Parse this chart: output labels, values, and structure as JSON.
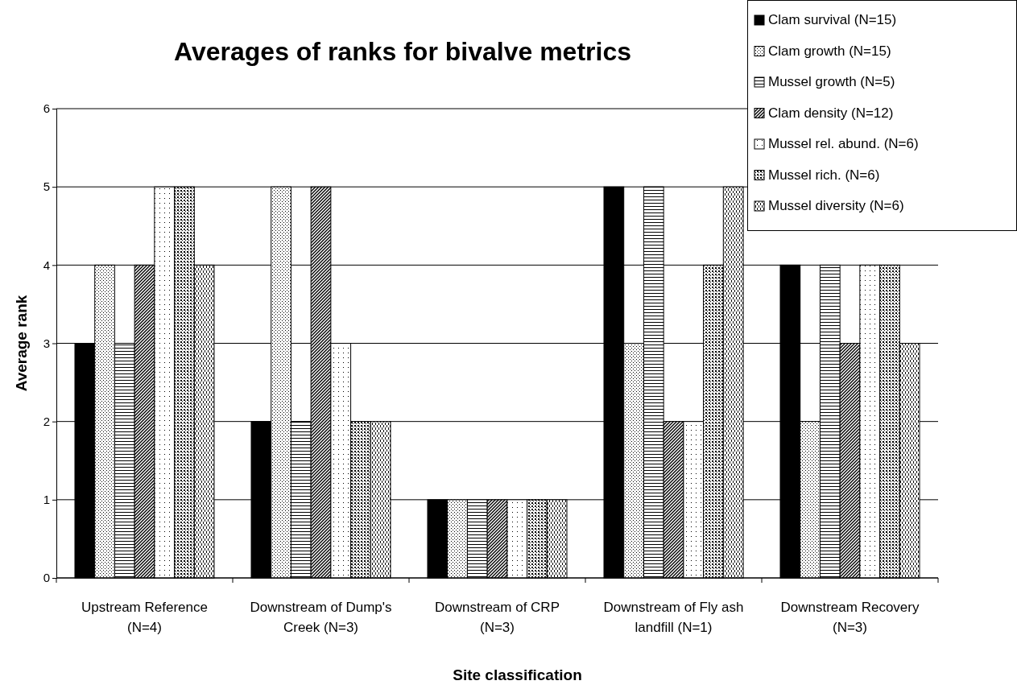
{
  "chart_data": {
    "type": "bar",
    "title": "Averages of ranks for bivalve metrics",
    "xlabel": "Site classification",
    "ylabel": "Average rank",
    "categories": [
      "Upstream Reference (N=4)",
      "Downstream of Dump's Creek (N=3)",
      "Downstream of CRP (N=3)",
      "Downstream of Fly ash landfill (N=1)",
      "Downstream Recovery (N=3)"
    ],
    "series": [
      {
        "name": "Clam survival (N=15)",
        "color": "#000000",
        "values": [
          3,
          2,
          1,
          5,
          4
        ]
      },
      {
        "name": "Clam growth (N=15)",
        "color": "#000000",
        "values": [
          4,
          5,
          1,
          3,
          2
        ]
      },
      {
        "name": "Mussel growth (N=5)",
        "color": "#000000",
        "values": [
          3,
          2,
          1,
          5,
          4
        ]
      },
      {
        "name": "Clam density (N=12)",
        "color": "#000000",
        "values": [
          4,
          5,
          1,
          2,
          3
        ]
      },
      {
        "name": "Mussel rel. abund. (N=6)",
        "color": "#000000",
        "values": [
          5,
          3,
          1,
          2,
          4
        ]
      },
      {
        "name": "Mussel rich. (N=6)",
        "color": "#000000",
        "values": [
          5,
          2,
          1,
          4,
          4
        ]
      },
      {
        "name": "Mussel diversity (N=6)",
        "color": "#000000",
        "values": [
          4,
          2,
          1,
          5,
          3
        ]
      }
    ],
    "ylim": [
      0,
      6
    ],
    "yticks": [
      0,
      1,
      2,
      3,
      4,
      5,
      6
    ],
    "grid": "y",
    "legend": "top right"
  }
}
